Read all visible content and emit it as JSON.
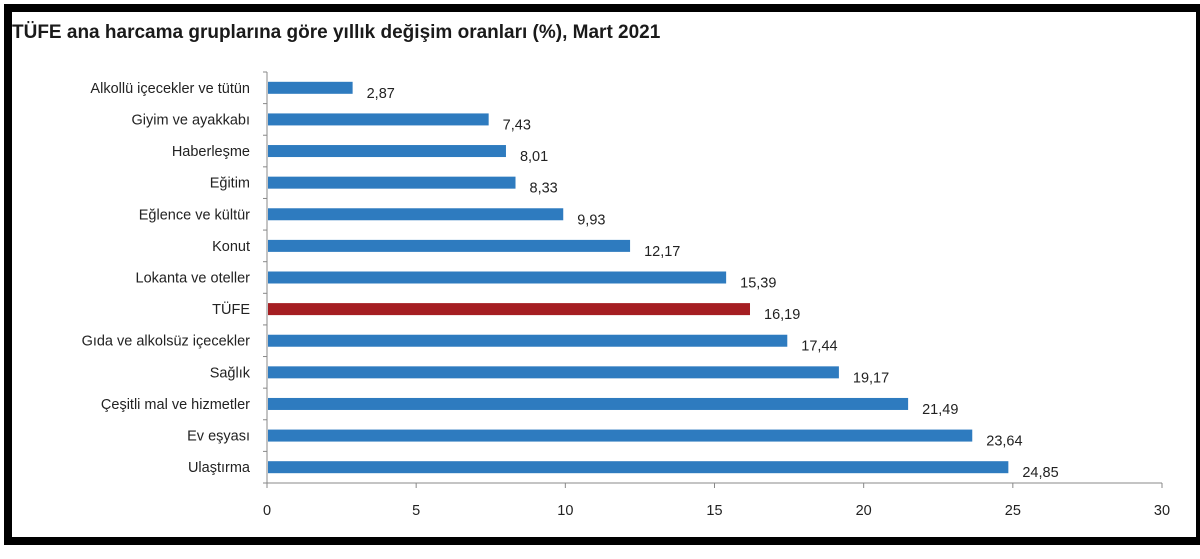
{
  "chart_data": {
    "type": "bar",
    "orientation": "horizontal",
    "title": "TÜFE ana harcama gruplarına göre yıllık değişim oranları (%), Mart 2021",
    "categories": [
      "Alkollü içecekler ve tütün",
      "Giyim ve ayakkabı",
      "Haberleşme",
      "Eğitim",
      "Eğlence ve kültür",
      "Konut",
      "Lokanta ve oteller",
      "TÜFE",
      "Gıda ve alkolsüz içecekler",
      "Sağlık",
      "Çeşitli mal ve hizmetler",
      "Ev eşyası",
      "Ulaştırma"
    ],
    "values": [
      2.87,
      7.43,
      8.01,
      8.33,
      9.93,
      12.17,
      15.39,
      16.19,
      17.44,
      19.17,
      21.49,
      23.64,
      24.85
    ],
    "value_labels": [
      "2,87",
      "7,43",
      "8,01",
      "8,33",
      "9,93",
      "12,17",
      "15,39",
      "16,19",
      "17,44",
      "19,17",
      "21,49",
      "23,64",
      "24,85"
    ],
    "xlim": [
      0,
      30
    ],
    "xticks": [
      0,
      5,
      10,
      15,
      20,
      25,
      30
    ],
    "grid": false,
    "legend": "none",
    "colors": {
      "default": "#2e7bbf",
      "highlight": "#a51e22",
      "highlight_category": "TÜFE"
    }
  }
}
